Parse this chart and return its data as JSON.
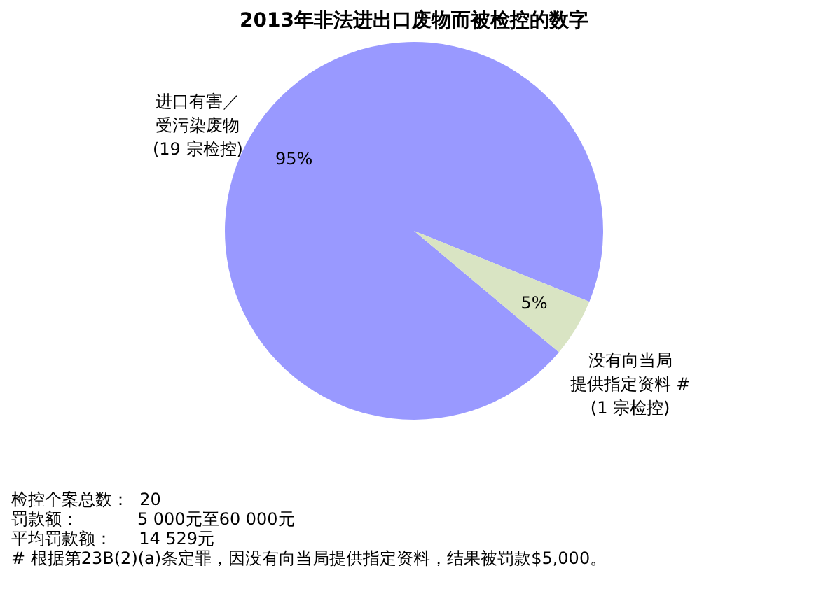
{
  "chart_data": {
    "type": "pie",
    "title": "2013年非法进出口废物而被检控的数字",
    "categories": [
      "进口有害／受污染废物(19 宗检控)",
      "没有向当局提供指定资料 #(1 宗检控)"
    ],
    "values": [
      95,
      5
    ],
    "colors": [
      "#9999ff",
      "#d9e4c3"
    ],
    "value_labels": [
      "95%",
      "5%"
    ],
    "annotations": [
      "检控个案总数：  20",
      "罚款额：           5 000元至60 000元",
      "平均罚款额：     14 529元",
      "# 根据第23B(2)(a)条定罪，因没有向当局提供指定资料，结果被罚款$5,000。"
    ]
  }
}
